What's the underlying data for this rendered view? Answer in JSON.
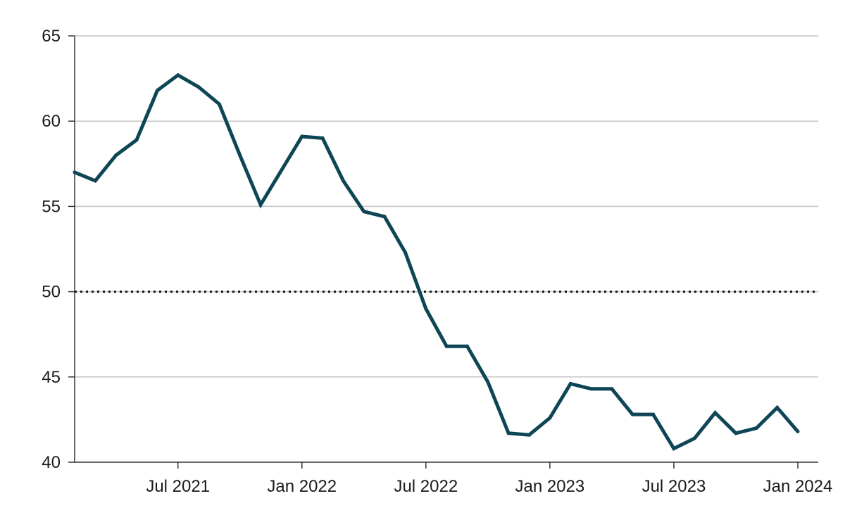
{
  "chart_data": {
    "type": "line",
    "title": "",
    "xlabel": "",
    "ylabel": "",
    "ylim": [
      40,
      65
    ],
    "yticks": [
      40,
      45,
      50,
      55,
      60,
      65
    ],
    "xticks": [
      "Jul 2021",
      "Jan 2022",
      "Jul 2022",
      "Jan 2023",
      "Jul 2023",
      "Jan 2024"
    ],
    "xrange": [
      "2021-02-01",
      "2024-01-01"
    ],
    "grid": true,
    "reference_line": {
      "y": 50,
      "style": "dotted",
      "color": "#111111"
    },
    "series": [
      {
        "color": "#0f4656",
        "x": [
          "2021-02-01",
          "2021-03-01",
          "2021-04-01",
          "2021-05-01",
          "2021-06-01",
          "2021-07-01",
          "2021-08-01",
          "2021-09-01",
          "2021-10-01",
          "2021-11-01",
          "2021-12-01",
          "2022-01-01",
          "2022-02-01",
          "2022-03-01",
          "2022-04-01",
          "2022-05-01",
          "2022-06-01",
          "2022-07-01",
          "2022-08-01",
          "2022-09-01",
          "2022-10-01",
          "2022-11-01",
          "2022-12-01",
          "2023-01-01",
          "2023-02-01",
          "2023-03-01",
          "2023-04-01",
          "2023-05-01",
          "2023-06-01",
          "2023-07-01",
          "2023-08-01",
          "2023-09-01",
          "2023-10-01",
          "2023-11-01",
          "2023-12-01",
          "2024-01-01"
        ],
        "values": [
          57.0,
          56.5,
          58.0,
          58.9,
          61.8,
          62.7,
          62.0,
          61.0,
          58.0,
          55.1,
          57.1,
          59.1,
          59.0,
          56.5,
          54.7,
          54.4,
          52.3,
          49.0,
          46.8,
          46.8,
          44.7,
          41.7,
          41.6,
          42.6,
          44.6,
          44.3,
          44.3,
          42.8,
          42.8,
          40.8,
          41.4,
          42.9,
          41.7,
          42.0,
          43.2,
          41.8
        ]
      }
    ]
  }
}
